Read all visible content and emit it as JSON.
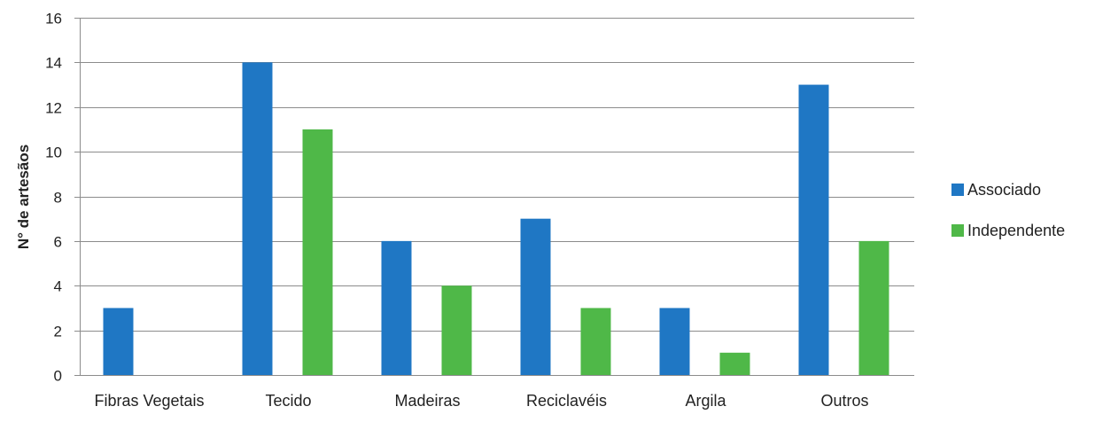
{
  "chart_data": {
    "type": "bar",
    "title": "",
    "xlabel": "",
    "ylabel": "N° de artesãos",
    "categories": [
      "Fibras Vegetais",
      "Tecido",
      "Madeiras",
      "Reciclavéis",
      "Argila",
      "Outros"
    ],
    "series": [
      {
        "name": "Associado",
        "color": "#1f77c4",
        "values": [
          3,
          14,
          6,
          7,
          3,
          13
        ]
      },
      {
        "name": "Independente",
        "color": "#4fb848",
        "values": [
          0,
          11,
          4,
          3,
          1,
          6
        ]
      }
    ],
    "ylim": [
      0,
      16
    ],
    "yticks": [
      "0",
      "2",
      "4",
      "6",
      "8",
      "10",
      "12",
      "14",
      "16"
    ],
    "grid": true,
    "legend_position": "right"
  }
}
